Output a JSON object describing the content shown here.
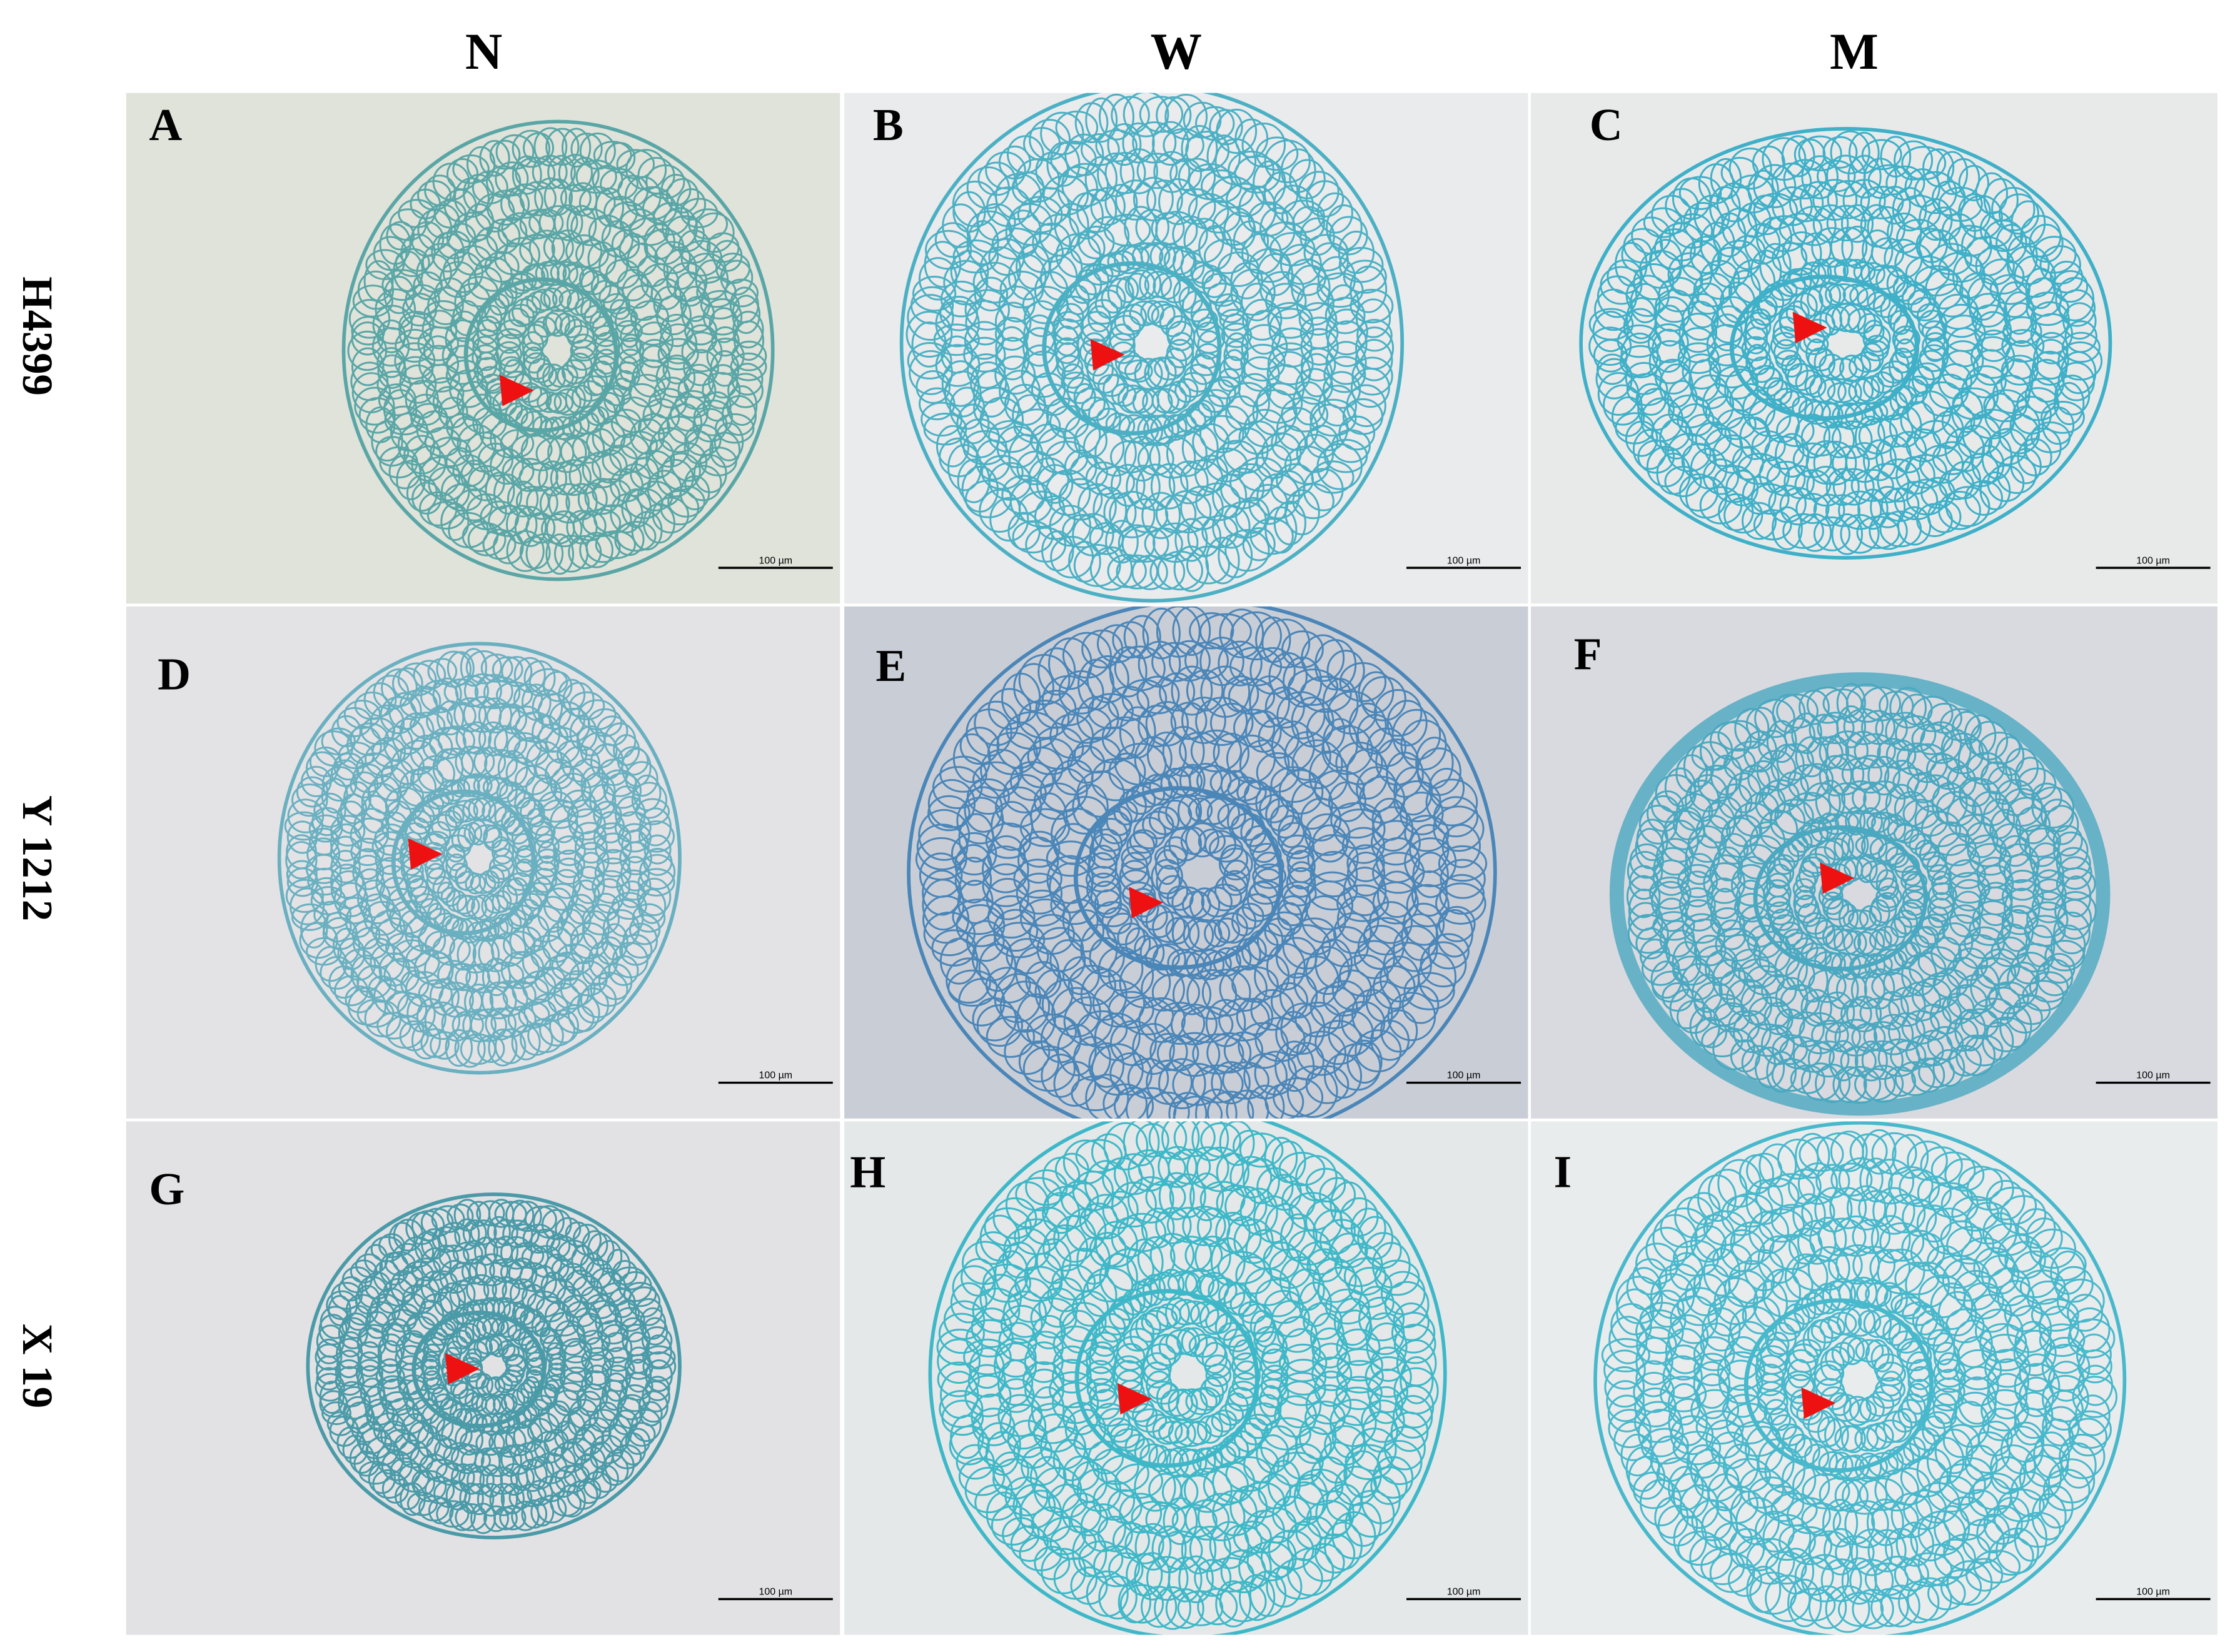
{
  "columns": [
    "N",
    "W",
    "M"
  ],
  "rows": [
    "H4399",
    "Y 1212",
    "X 19"
  ],
  "panels": [
    {
      "label": "A",
      "scale_bar": "100 µm"
    },
    {
      "label": "B",
      "scale_bar": "100 µm"
    },
    {
      "label": "C",
      "scale_bar": "100 µm"
    },
    {
      "label": "D",
      "scale_bar": "100 µm"
    },
    {
      "label": "E",
      "scale_bar": "100 µm"
    },
    {
      "label": "F",
      "scale_bar": "100 µm"
    },
    {
      "label": "G",
      "scale_bar": "100 µm"
    },
    {
      "label": "H",
      "scale_bar": "100 µm"
    },
    {
      "label": "I",
      "scale_bar": "100 µm"
    }
  ]
}
